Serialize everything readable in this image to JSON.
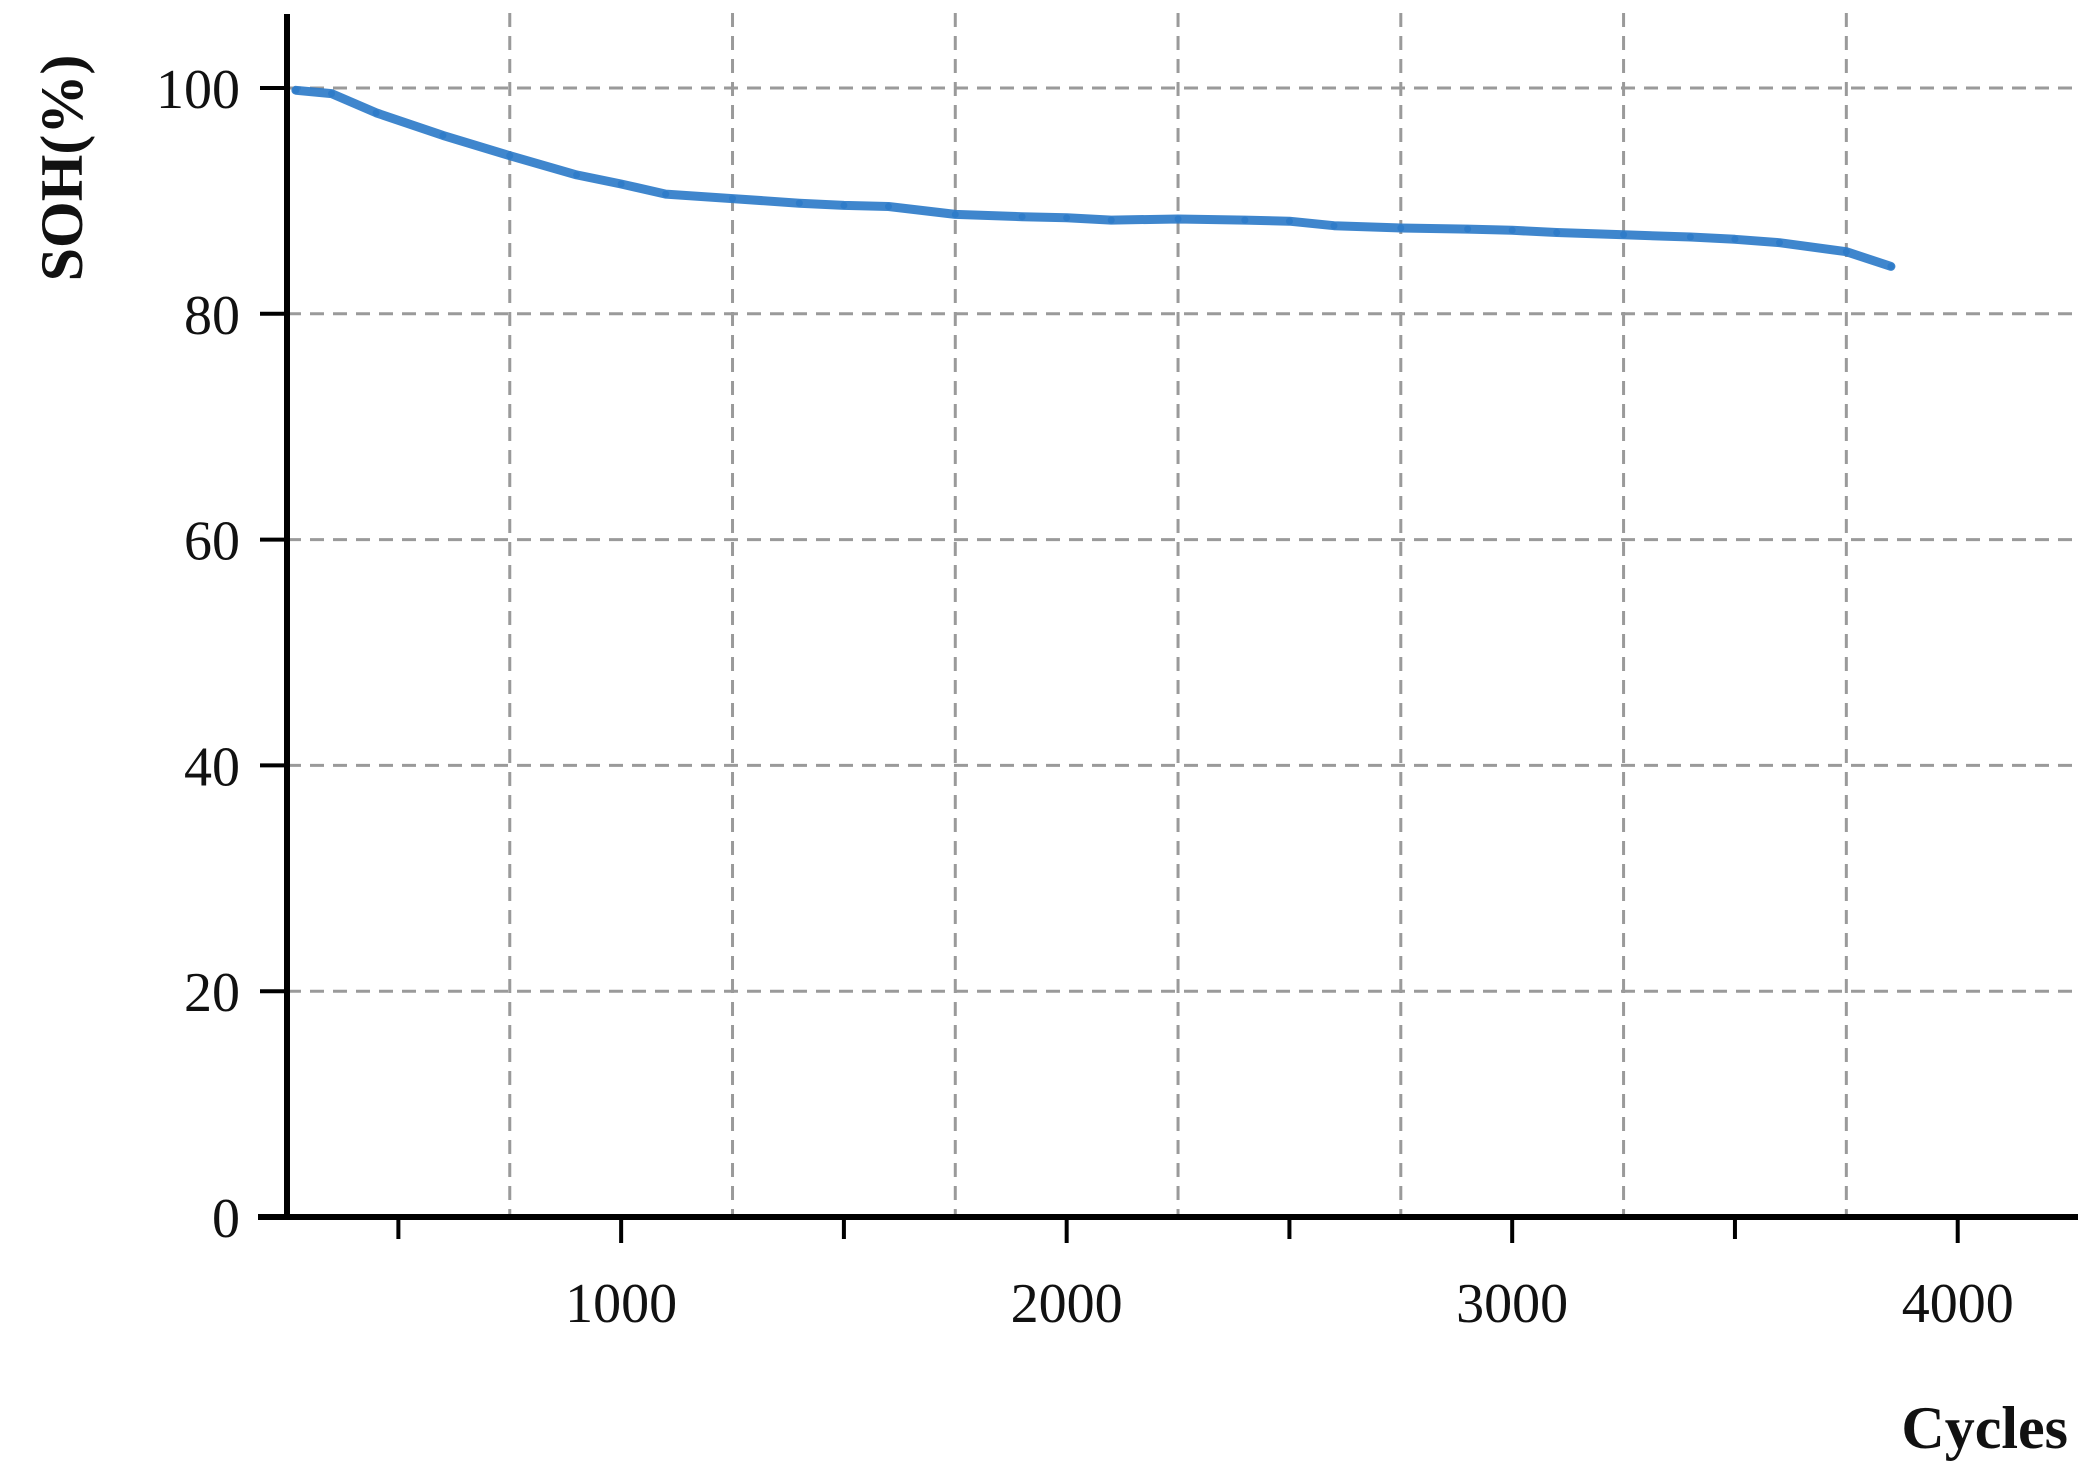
{
  "chart_data": {
    "type": "line",
    "title": "",
    "xlabel": "Cycles",
    "ylabel": "SOH(%)",
    "xlim": [
      250,
      4270
    ],
    "ylim": [
      0,
      100
    ],
    "xticks": [
      1000,
      2000,
      3000,
      4000
    ],
    "xticks_minor": [
      500,
      1500,
      2500,
      3500
    ],
    "yticks": [
      0,
      20,
      40,
      60,
      80,
      100
    ],
    "x_gridlines": [
      750,
      1250,
      1750,
      2250,
      2750,
      3250,
      3750
    ],
    "y_gridlines": [
      20,
      40,
      60,
      80,
      100
    ],
    "grid": true,
    "grid_style": "dashed",
    "line_color": "#2f7cc9",
    "series": [
      {
        "x": [
          270,
          350,
          450,
          600,
          750,
          900,
          1000,
          1100,
          1250,
          1400,
          1500,
          1600,
          1750,
          1900,
          2000,
          2100,
          2250,
          2400,
          2500,
          2600,
          2750,
          2900,
          3000,
          3100,
          3250,
          3400,
          3500,
          3600,
          3750,
          3850
        ],
        "values": [
          99.8,
          99.5,
          97.8,
          95.8,
          94.0,
          92.3,
          91.5,
          90.6,
          90.2,
          89.8,
          89.6,
          89.5,
          88.8,
          88.6,
          88.5,
          88.3,
          88.4,
          88.3,
          88.2,
          87.8,
          87.6,
          87.5,
          87.4,
          87.2,
          87.0,
          86.8,
          86.6,
          86.3,
          85.5,
          84.2
        ]
      }
    ]
  }
}
